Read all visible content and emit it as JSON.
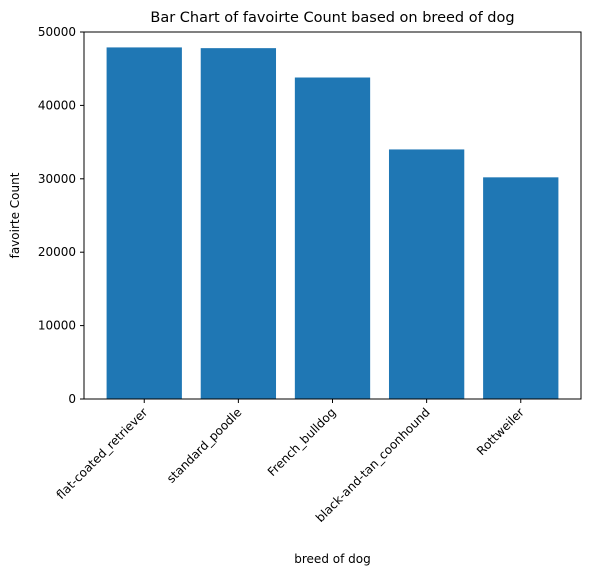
{
  "chart_data": {
    "type": "bar",
    "title": "Bar Chart of favoirte Count based on breed of dog",
    "xlabel": "breed of dog",
    "ylabel": "favoirte Count",
    "categories": [
      "flat-coated_retriever",
      "standard_poodle",
      "French_bulldog",
      "black-and-tan_coonhound",
      "Rottweiler"
    ],
    "values": [
      47900,
      47800,
      43800,
      34000,
      30200
    ],
    "ylim": [
      0,
      50000
    ],
    "yticks": [
      0,
      10000,
      20000,
      30000,
      40000,
      50000
    ],
    "grid": false,
    "bar_color": "#1f77b4",
    "xtick_rotation": 45
  }
}
